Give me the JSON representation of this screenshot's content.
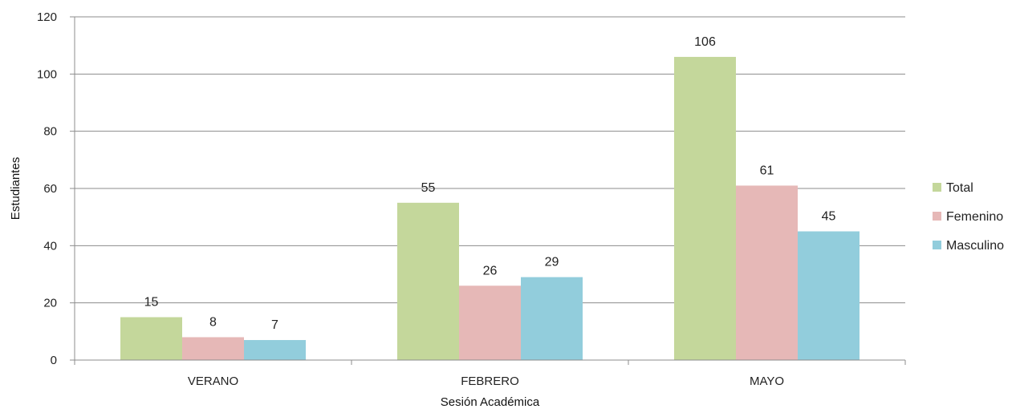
{
  "chart_data": {
    "type": "bar",
    "categories": [
      "VERANO",
      "FEBRERO",
      "MAYO"
    ],
    "series": [
      {
        "name": "Total",
        "values": [
          15,
          55,
          106
        ],
        "color": "#c4d79b"
      },
      {
        "name": "Femenino",
        "values": [
          8,
          26,
          61
        ],
        "color": "#e6b8b7"
      },
      {
        "name": "Masculino",
        "values": [
          7,
          29,
          45
        ],
        "color": "#92cddc"
      }
    ],
    "xlabel": "Sesión Académica",
    "ylabel": "Estudiantes",
    "ylim": [
      0,
      120
    ],
    "yticks": [
      0,
      20,
      40,
      60,
      80,
      100,
      120
    ],
    "grid": true,
    "legend_position": "right"
  }
}
